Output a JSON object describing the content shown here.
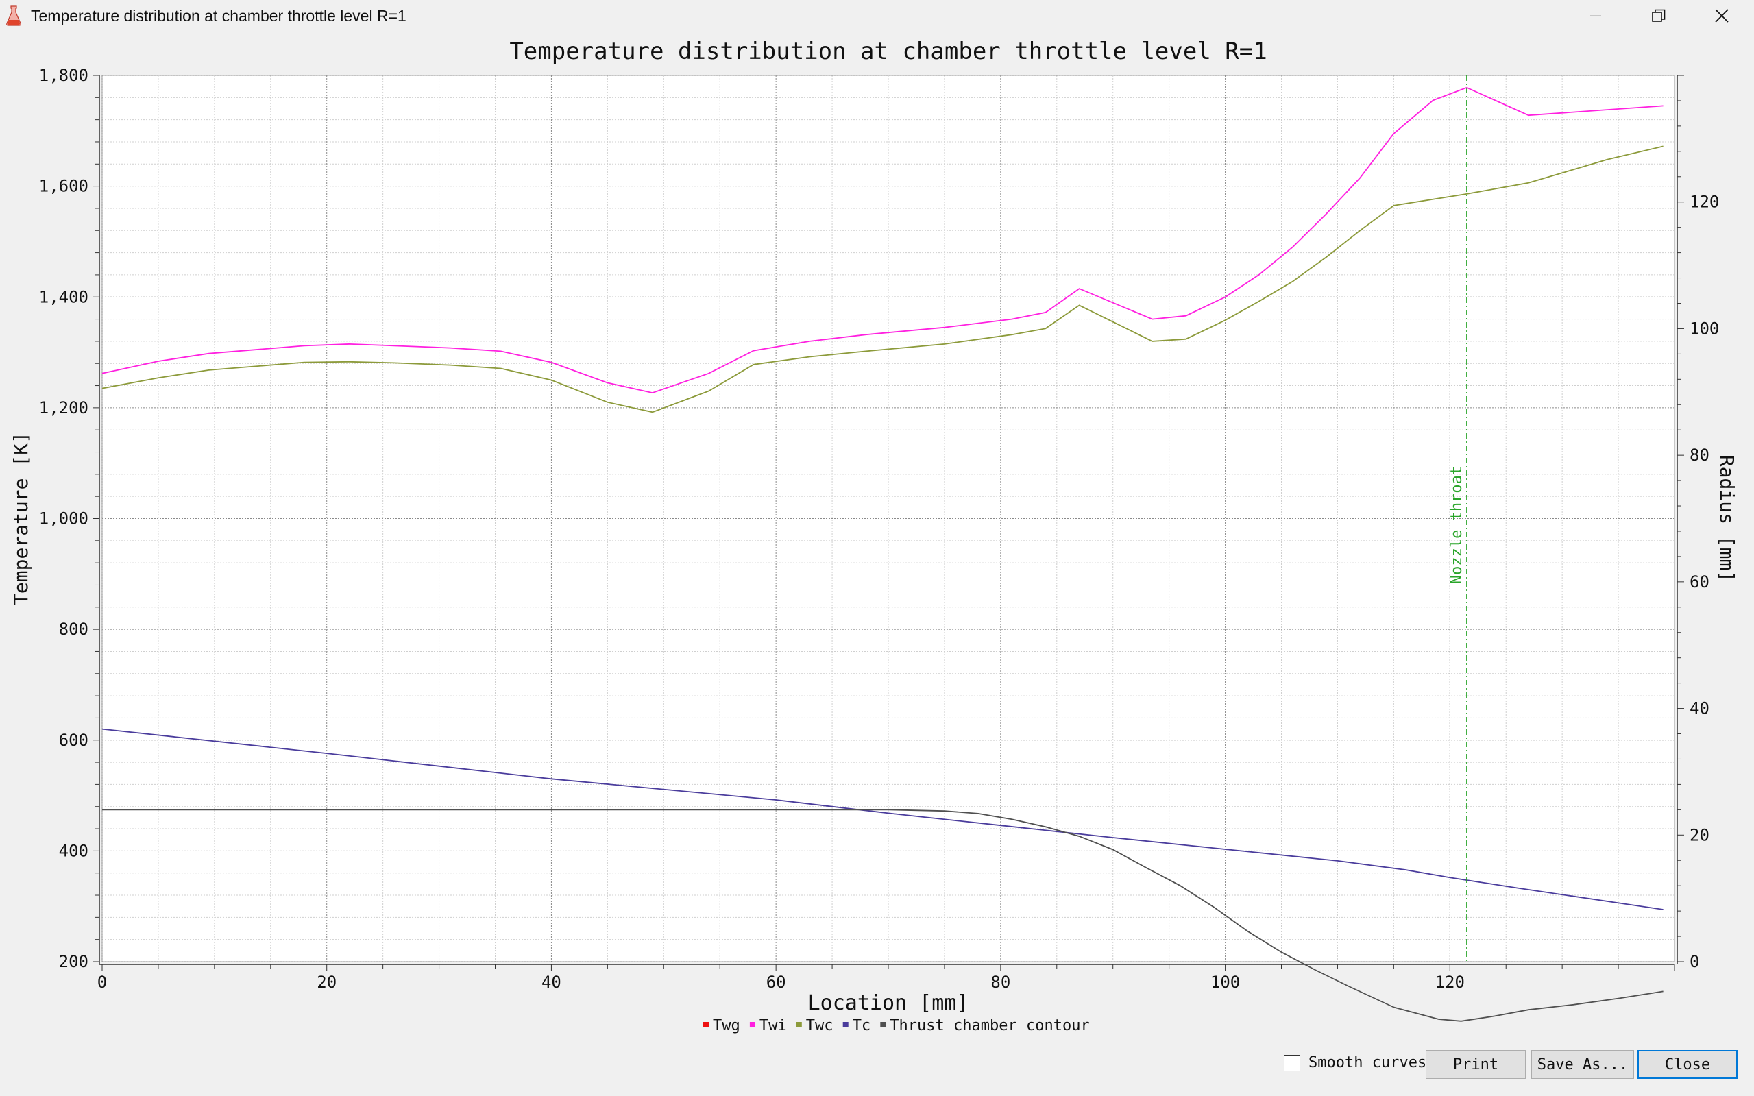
{
  "window": {
    "title": "Temperature distribution at chamber throttle level R=1"
  },
  "controls": {
    "smooth_label": "Smooth curves",
    "smooth_checked": false,
    "print_label": "Print",
    "saveas_label": "Save As...",
    "close_label": "Close"
  },
  "colors": {
    "Twg": "#ee1111",
    "Twi": "#ff20e0",
    "Twc": "#8c9a3a",
    "Tc": "#4a3c9c",
    "contour": "#505050",
    "throat": "#2aa52a",
    "accent": "#0078d7"
  },
  "chart_data": {
    "type": "line",
    "title": "Temperature distribution at chamber throttle level R=1",
    "xlabel": "Location [mm]",
    "ylabel": "Temperature [K]",
    "y2label": "Radius [mm]",
    "xlim": [
      0,
      140
    ],
    "ylim": [
      200,
      1800
    ],
    "y2lim": [
      0,
      140
    ],
    "xticks": [
      0,
      20,
      40,
      60,
      80,
      100,
      120
    ],
    "yticks": [
      200,
      400,
      600,
      800,
      1000,
      1200,
      1400,
      1600,
      1800
    ],
    "ytick_labels": [
      "200",
      "400",
      "600",
      "800",
      "1,000",
      "1,200",
      "1,400",
      "1,600",
      "1,800"
    ],
    "y2ticks": [
      0,
      20,
      40,
      60,
      80,
      100,
      120
    ],
    "grid": true,
    "legend_position": "bottom-center",
    "annotation": {
      "text": "Nozzle throat",
      "x": 121.5
    },
    "series": [
      {
        "name": "Twg",
        "axis": "left",
        "points": []
      },
      {
        "name": "Twi",
        "axis": "left",
        "points": [
          [
            0,
            1262
          ],
          [
            5,
            1284
          ],
          [
            9.5,
            1298
          ],
          [
            18,
            1312
          ],
          [
            22,
            1315
          ],
          [
            26,
            1312
          ],
          [
            31,
            1308
          ],
          [
            35.5,
            1302
          ],
          [
            40,
            1282
          ],
          [
            45,
            1245
          ],
          [
            49,
            1227
          ],
          [
            54,
            1262
          ],
          [
            58,
            1303
          ],
          [
            63,
            1320
          ],
          [
            68,
            1332
          ],
          [
            75,
            1345
          ],
          [
            81,
            1360
          ],
          [
            84,
            1372
          ],
          [
            87,
            1415
          ],
          [
            93.5,
            1360
          ],
          [
            96.5,
            1366
          ],
          [
            100,
            1400
          ],
          [
            103,
            1440
          ],
          [
            106,
            1490
          ],
          [
            109,
            1550
          ],
          [
            112,
            1615
          ],
          [
            115,
            1695
          ],
          [
            118.5,
            1755
          ],
          [
            121.5,
            1778
          ],
          [
            127,
            1728
          ],
          [
            134,
            1738
          ],
          [
            139,
            1745
          ]
        ]
      },
      {
        "name": "Twc",
        "axis": "left",
        "points": [
          [
            0,
            1235
          ],
          [
            5,
            1254
          ],
          [
            9.5,
            1268
          ],
          [
            18,
            1282
          ],
          [
            22,
            1283
          ],
          [
            26,
            1281
          ],
          [
            31,
            1277
          ],
          [
            35.5,
            1271
          ],
          [
            40,
            1250
          ],
          [
            45,
            1210
          ],
          [
            49,
            1192
          ],
          [
            54,
            1230
          ],
          [
            58,
            1278
          ],
          [
            63,
            1292
          ],
          [
            68,
            1302
          ],
          [
            75,
            1315
          ],
          [
            81,
            1332
          ],
          [
            84,
            1343
          ],
          [
            87,
            1385
          ],
          [
            93.5,
            1320
          ],
          [
            96.5,
            1324
          ],
          [
            100,
            1358
          ],
          [
            103,
            1392
          ],
          [
            106,
            1428
          ],
          [
            109,
            1472
          ],
          [
            112,
            1520
          ],
          [
            115,
            1565
          ],
          [
            121.5,
            1586
          ],
          [
            127,
            1606
          ],
          [
            134,
            1648
          ],
          [
            139,
            1672
          ]
        ]
      },
      {
        "name": "Tc",
        "axis": "left",
        "points": [
          [
            0,
            620
          ],
          [
            20,
            576
          ],
          [
            40,
            530
          ],
          [
            60,
            492
          ],
          [
            70,
            468
          ],
          [
            80,
            446
          ],
          [
            90,
            424
          ],
          [
            100,
            403
          ],
          [
            110,
            382
          ],
          [
            116,
            366
          ],
          [
            120,
            352
          ],
          [
            126,
            333
          ],
          [
            139,
            294
          ]
        ]
      },
      {
        "name": "Thrust chamber contour",
        "axis": "right",
        "points": [
          [
            0,
            24
          ],
          [
            20,
            24
          ],
          [
            40,
            24
          ],
          [
            60,
            24
          ],
          [
            70,
            24
          ],
          [
            75,
            23.8
          ],
          [
            78,
            23.4
          ],
          [
            81,
            22.5
          ],
          [
            84,
            21.3
          ],
          [
            87,
            19.8
          ],
          [
            90,
            17.7
          ],
          [
            93,
            14.8
          ],
          [
            96,
            12
          ],
          [
            99,
            8.6
          ],
          [
            102,
            4.8
          ],
          [
            105,
            1.5
          ],
          [
            108,
            -1.3
          ],
          [
            111,
            -3.9
          ],
          [
            115,
            -7.2
          ],
          [
            119,
            -9.1
          ],
          [
            121,
            -9.4
          ],
          [
            124,
            -8.6
          ],
          [
            127,
            -7.6
          ],
          [
            131,
            -6.8
          ],
          [
            135,
            -5.8
          ],
          [
            139,
            -4.7
          ]
        ]
      }
    ]
  }
}
